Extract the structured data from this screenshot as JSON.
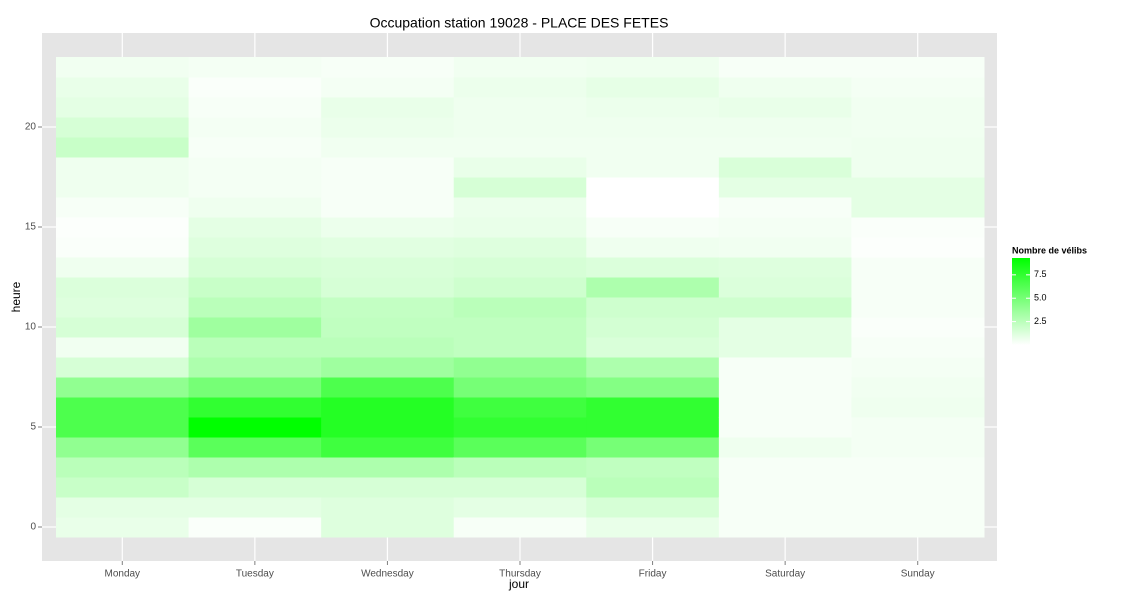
{
  "chart_data": {
    "type": "heatmap",
    "title": "Occupation station 19028 - PLACE DES FETES",
    "x_label": "jour",
    "y_label": "heure",
    "categories": [
      "Monday",
      "Tuesday",
      "Wednesday",
      "Thursday",
      "Friday",
      "Saturday",
      "Sunday"
    ],
    "y": [
      0,
      1,
      2,
      3,
      4,
      5,
      6,
      7,
      8,
      9,
      10,
      11,
      12,
      13,
      14,
      15,
      16,
      17,
      18,
      19,
      20,
      21,
      22,
      23
    ],
    "values": [
      [
        0.8,
        1,
        2,
        2.5,
        4,
        6.5,
        6.5,
        4,
        1.5,
        0.5,
        1.5,
        1.2,
        1.3,
        0.6,
        0.2,
        0.1,
        0.3,
        0.6,
        0.6,
        2,
        1.5,
        1,
        0.8,
        0.5
      ],
      [
        0.2,
        1,
        1.5,
        3,
        6,
        9.3,
        7.5,
        5,
        3,
        2.5,
        3.5,
        2.5,
        2,
        1.5,
        1.2,
        1,
        0.6,
        0.4,
        0.4,
        0.3,
        0.4,
        0.3,
        0.2,
        0.4
      ],
      [
        1.2,
        1.2,
        1.5,
        3,
        7,
        8,
        8,
        6.5,
        3.5,
        2.5,
        2.3,
        2.2,
        1.5,
        1.4,
        1.1,
        0.7,
        0.3,
        0.3,
        0.3,
        0.5,
        0.7,
        0.8,
        0.4,
        0.3
      ],
      [
        0.3,
        1,
        1.5,
        2.5,
        6,
        7.5,
        7,
        5,
        4,
        2.3,
        2.3,
        2.5,
        1.8,
        1.5,
        1.2,
        0.8,
        0.7,
        1.5,
        0.8,
        0.5,
        0.6,
        0.6,
        0.7,
        0.5
      ],
      [
        0.8,
        1.5,
        2.5,
        2.3,
        5,
        7.5,
        7.5,
        4.5,
        3,
        1.4,
        1.6,
        1.8,
        3,
        1.3,
        0.6,
        0.3,
        0,
        0,
        0.5,
        0.5,
        0.6,
        0.7,
        0.9,
        0.6
      ],
      [
        0.3,
        0.3,
        0.3,
        0.3,
        0.6,
        0.3,
        0.3,
        0.3,
        0.3,
        1,
        1,
        1.8,
        1.3,
        1.2,
        0.5,
        0.4,
        0.3,
        1,
        1.4,
        0.5,
        0.6,
        0.8,
        0.6,
        0.3
      ],
      [
        0.3,
        0.3,
        0.3,
        0.3,
        0.4,
        0.4,
        0.6,
        0.5,
        0.4,
        0.3,
        0.2,
        0.3,
        0.3,
        0.3,
        0.1,
        0.2,
        1,
        1,
        0.6,
        0.6,
        0.5,
        0.5,
        0.4,
        0.3
      ]
    ],
    "ylim": [
      -0.5,
      23.5
    ],
    "yticks": [
      0,
      5,
      10,
      15,
      20
    ],
    "grid": true,
    "legend_title": "Nombre de vélibs",
    "colorlim": [
      0,
      9.3
    ],
    "colors": [
      "#ffffff",
      "#00ff00"
    ],
    "colorticks": [
      2.5,
      {
        "value": 5,
        "label": "5.0"
      },
      7.5
    ]
  }
}
